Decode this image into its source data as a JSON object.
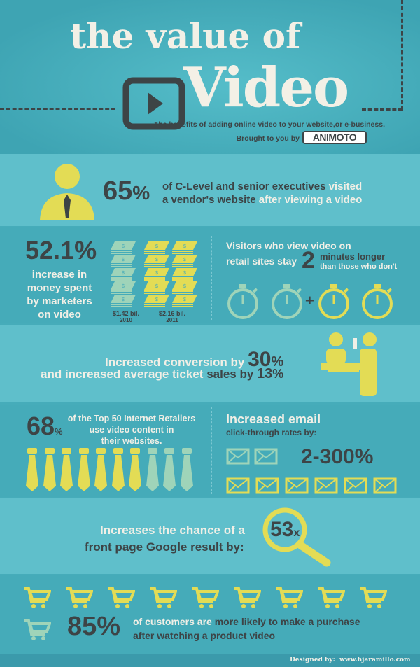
{
  "header": {
    "title_line1": "the value of",
    "title_line2": "Video",
    "subtitle": "The benefits of adding online video to your website,or e-business.",
    "brought_by": "Brought to you by",
    "brand_logo": "ANIMOTO",
    "icon": "play-button-icon"
  },
  "exec": {
    "stat": "65",
    "unit": "%",
    "text_a": "of C-Level and senior executives",
    "text_b": "visited",
    "text_c": "a vendor's website",
    "text_d": "after viewing a video",
    "icon": "executive-icon"
  },
  "spend": {
    "stat": "52.1%",
    "text": [
      "increase in",
      "money spent",
      "by marketers",
      "on video"
    ],
    "bars": [
      {
        "amount": "$1.42 bil.",
        "year": "2010",
        "stacks": 5
      },
      {
        "amount": "$2.16 bil.",
        "year": "2011",
        "stacks": 10
      }
    ],
    "icon": "money-stack-icon"
  },
  "visitors": {
    "line1": "Visitors who view video on",
    "line2": "retail sites stay",
    "stat": "2",
    "unit": "minutes longer",
    "tail": "than those who don't",
    "plus": "+",
    "icon": "stopwatch-icon"
  },
  "conversion": {
    "line1_a": "Increased conversion by",
    "stat1": "30",
    "line2_a": "and increased average ticket",
    "line2_b": "sales by",
    "stat2": "13",
    "unit": "%",
    "icon": "checkout-counter-icon"
  },
  "retailers": {
    "stat": "68",
    "unit": "%",
    "text": [
      "of the Top 50 Internet Retailers",
      "use video content in",
      "their websites."
    ],
    "ties_yellow": 7,
    "ties_total": 10,
    "icon": "tie-icon"
  },
  "email": {
    "title": "Increased email",
    "subtitle": "click-through rates by:",
    "stat": "2-300%",
    "icon": "envelope-icon"
  },
  "google": {
    "line1": "Increases the chance of a",
    "line2": "front page Google result by:",
    "stat": "53",
    "unit": "x",
    "icon": "magnifier-icon"
  },
  "purchase": {
    "stat": "85%",
    "text_a": "of customers are",
    "text_b": "more likely to make a purchase",
    "text_c": "after watching a product video",
    "icon": "shopping-cart-icon"
  },
  "footer": {
    "label": "Designed by:",
    "site": "www.hjaramillo.com"
  },
  "colors": {
    "teal": "#46acba",
    "light_teal": "#5fbfcb",
    "yellow": "#e3dc55",
    "mint": "#9fd4b9",
    "charcoal": "#3d4446",
    "cream": "#f1efe6"
  }
}
